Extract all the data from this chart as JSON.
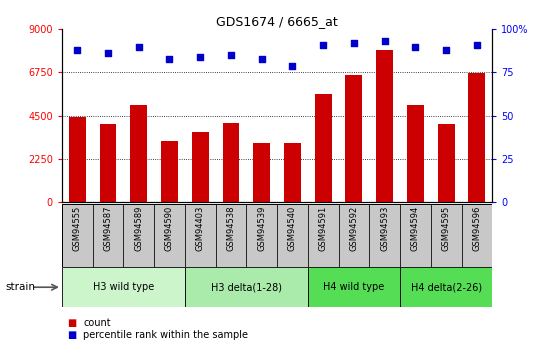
{
  "title": "GDS1674 / 6665_at",
  "categories": [
    "GSM94555",
    "GSM94587",
    "GSM94589",
    "GSM94590",
    "GSM94403",
    "GSM94538",
    "GSM94539",
    "GSM94540",
    "GSM94591",
    "GSM94592",
    "GSM94593",
    "GSM94594",
    "GSM94595",
    "GSM94596"
  ],
  "counts": [
    4400,
    4050,
    5050,
    3150,
    3650,
    4100,
    3050,
    3050,
    5600,
    6600,
    7900,
    5050,
    4050,
    6700
  ],
  "percentiles": [
    88,
    86,
    90,
    83,
    84,
    85,
    83,
    79,
    91,
    92,
    93,
    90,
    88,
    91
  ],
  "groups": [
    {
      "label": "H3 wild type",
      "start": 0,
      "end": 4,
      "color": "#ccf5cc"
    },
    {
      "label": "H3 delta(1-28)",
      "start": 4,
      "end": 8,
      "color": "#aaeaaa"
    },
    {
      "label": "H4 wild type",
      "start": 8,
      "end": 11,
      "color": "#55dd55"
    },
    {
      "label": "H4 delta(2-26)",
      "start": 11,
      "end": 14,
      "color": "#55dd55"
    }
  ],
  "bar_color": "#cc0000",
  "dot_color": "#0000cc",
  "ylim_left": [
    0,
    9000
  ],
  "ylim_right": [
    0,
    100
  ],
  "yticks_left": [
    0,
    2250,
    4500,
    6750,
    9000
  ],
  "yticks_right": [
    0,
    25,
    50,
    75,
    100
  ],
  "grid_values": [
    2250,
    4500,
    6750
  ],
  "strain_label": "strain",
  "legend_count": "count",
  "legend_pct": "percentile rank within the sample",
  "tick_area_color": "#c8c8c8",
  "grp_colors": [
    "#ccf5cc",
    "#aaeaaa",
    "#55dd55",
    "#55dd55"
  ]
}
